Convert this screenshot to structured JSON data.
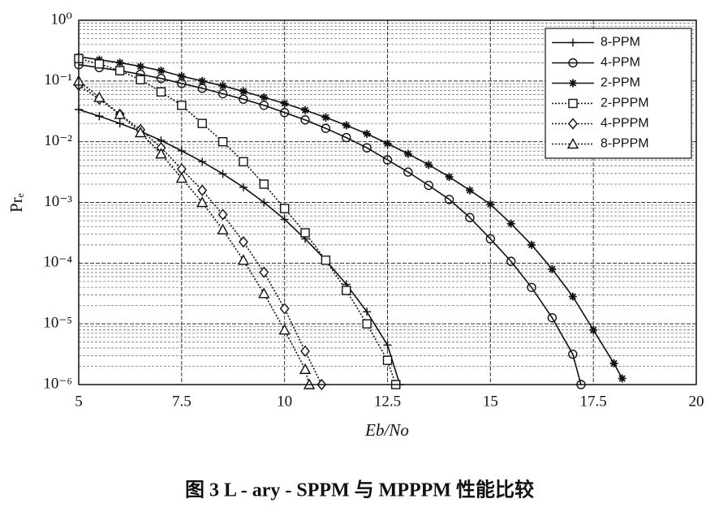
{
  "chart_data": {
    "type": "line",
    "xlabel": "Eb/No",
    "ylabel": "Prₑ",
    "caption": "图 3   L - ary - SPPM 与 MPPPM 性能比较",
    "xlim": [
      5,
      20
    ],
    "xticks": [
      5,
      7.5,
      10,
      12.5,
      15,
      17.5,
      20
    ],
    "ylim": [
      1e-06,
      1
    ],
    "ylog": true,
    "yticks": [
      {
        "value": 1,
        "label": "10⁰"
      },
      {
        "value": 0.1,
        "label": "10⁻¹"
      },
      {
        "value": 0.01,
        "label": "10⁻²"
      },
      {
        "value": 0.001,
        "label": "10⁻³"
      },
      {
        "value": 0.0001,
        "label": "10⁻⁴"
      },
      {
        "value": 1e-05,
        "label": "10⁻⁵"
      },
      {
        "value": 1e-06,
        "label": "10⁻⁶"
      }
    ],
    "grid": true,
    "legend": "upper right",
    "series": [
      {
        "name": "8-PPM",
        "color": "#111111",
        "marker": "plus",
        "dash": "solid",
        "x": [
          5,
          5.5,
          6,
          6.5,
          7,
          7.5,
          8,
          8.5,
          9,
          9.5,
          10,
          10.5,
          11,
          11.5,
          12,
          12.5,
          12.8
        ],
        "values": [
          0.0339,
          0.0263,
          0.02,
          0.0148,
          0.0105,
          0.00708,
          0.00468,
          0.00295,
          0.00178,
          0.001,
          0.000525,
          0.000251,
          0.000112,
          4.47e-05,
          1.58e-05,
          4.47e-06,
          1e-06
        ]
      },
      {
        "name": "4-PPM",
        "color": "#111111",
        "marker": "circle",
        "dash": "solid",
        "x": [
          5,
          5.5,
          6,
          6.5,
          7,
          7.5,
          8,
          8.5,
          9,
          9.5,
          10,
          10.5,
          11,
          11.5,
          12,
          12.5,
          13,
          13.5,
          14,
          14.5,
          15,
          15.5,
          16,
          16.5,
          17,
          17.2
        ],
        "values": [
          0.186,
          0.166,
          0.148,
          0.129,
          0.11,
          0.0912,
          0.0759,
          0.0617,
          0.0501,
          0.0398,
          0.0302,
          0.0229,
          0.0166,
          0.0117,
          0.00794,
          0.00501,
          0.00316,
          0.00191,
          0.00112,
          0.000562,
          0.000251,
          0.000107,
          3.98e-05,
          1.26e-05,
          3.16e-06,
          1e-06
        ]
      },
      {
        "name": "2-PPM",
        "color": "#111111",
        "marker": "star",
        "dash": "solid",
        "x": [
          5,
          5.5,
          6,
          6.5,
          7,
          7.5,
          8,
          8.5,
          9,
          9.5,
          10,
          10.5,
          11,
          11.5,
          12,
          12.5,
          13,
          13.5,
          14,
          14.5,
          15,
          15.5,
          16,
          16.5,
          17,
          17.5,
          18,
          18.2
        ],
        "values": [
          0.251,
          0.224,
          0.2,
          0.174,
          0.148,
          0.12,
          0.1,
          0.0832,
          0.0676,
          0.0537,
          0.0427,
          0.0331,
          0.0251,
          0.0186,
          0.0135,
          0.00933,
          0.00631,
          0.00417,
          0.00263,
          0.00158,
          0.000933,
          0.000447,
          0.0002,
          7.94e-05,
          2.82e-05,
          7.94e-06,
          2.24e-06,
          1.26e-06
        ]
      },
      {
        "name": "2-PPPM",
        "color": "#111111",
        "marker": "square",
        "dash": "dotted",
        "x": [
          5,
          5.5,
          6,
          6.5,
          7,
          7.5,
          8,
          8.5,
          9,
          9.5,
          10,
          10.5,
          11,
          11.5,
          12,
          12.5,
          12.7
        ],
        "values": [
          0.234,
          0.191,
          0.148,
          0.105,
          0.0661,
          0.0398,
          0.02,
          0.01,
          0.00468,
          0.002,
          0.000794,
          0.000316,
          0.000112,
          3.55e-05,
          1e-05,
          2.51e-06,
          1e-06
        ]
      },
      {
        "name": "4-PPPM",
        "color": "#111111",
        "marker": "diamond",
        "dash": "dotted",
        "x": [
          5,
          5.5,
          6,
          6.5,
          7,
          7.5,
          8,
          8.5,
          9,
          9.5,
          10,
          10.5,
          10.9
        ],
        "values": [
          0.0851,
          0.0501,
          0.0282,
          0.0158,
          0.00794,
          0.00355,
          0.00158,
          0.000631,
          0.000224,
          7.08e-05,
          1.78e-05,
          3.55e-06,
          1e-06
        ]
      },
      {
        "name": "8-PPPM",
        "color": "#111111",
        "marker": "triangle",
        "dash": "dotted",
        "x": [
          5,
          5.5,
          6,
          6.5,
          7,
          7.5,
          8,
          8.5,
          9,
          9.5,
          10,
          10.5,
          10.6
        ],
        "values": [
          0.1,
          0.0537,
          0.0282,
          0.0141,
          0.00631,
          0.00251,
          0.001,
          0.000355,
          0.000112,
          3.16e-05,
          7.94e-06,
          1.78e-06,
          1e-06
        ]
      }
    ]
  }
}
